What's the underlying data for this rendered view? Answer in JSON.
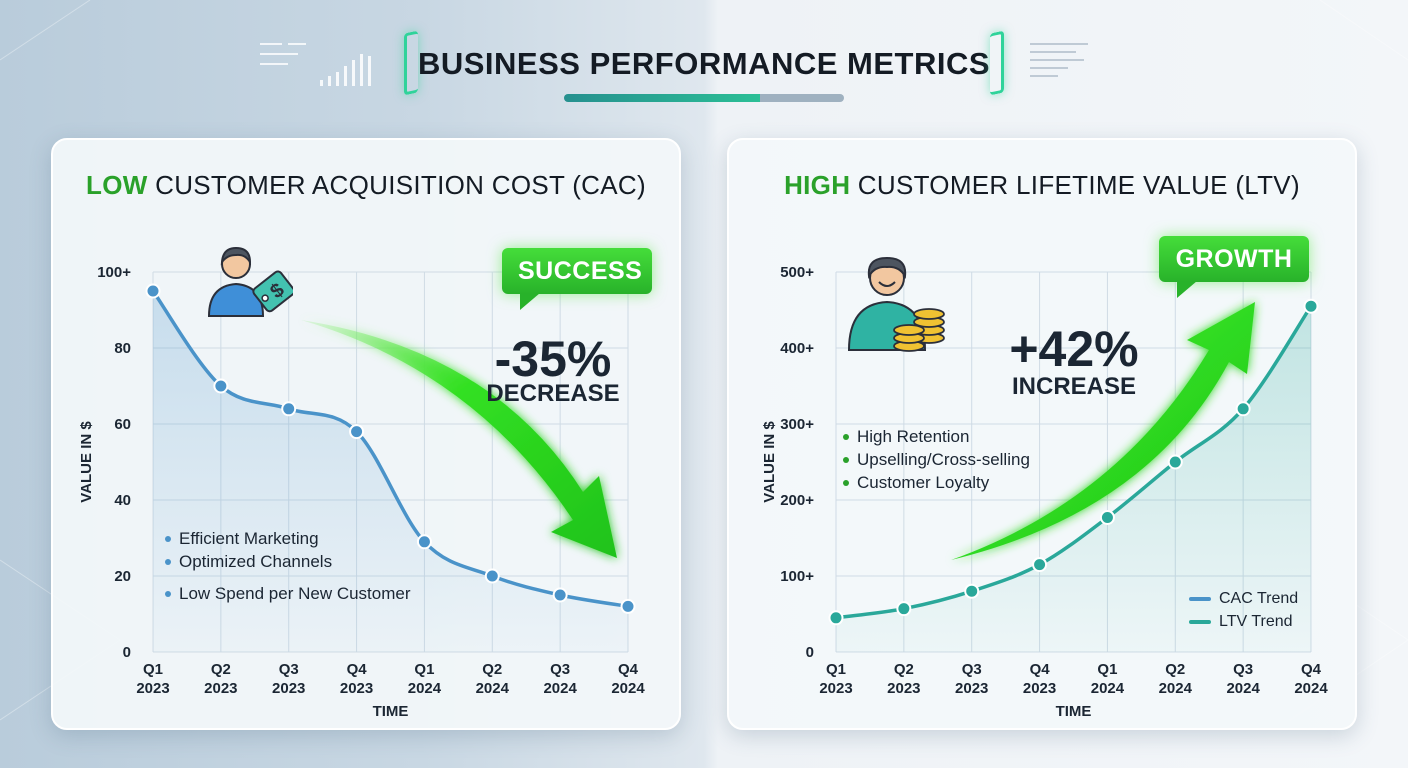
{
  "header": {
    "title": "BUSINESS PERFORMANCE METRICS"
  },
  "colors": {
    "cac_line": "#4a93c9",
    "ltv_line": "#2aa89a",
    "highlight_green": "#2aa12a",
    "arrow_green": "#33e022"
  },
  "icons": {
    "left": "person-with-price-tag-icon",
    "right": "smiling-person-with-coins-icon",
    "arrow_left": "arrow-down-right-icon",
    "arrow_right": "arrow-up-right-icon"
  },
  "cac_panel": {
    "title_highlight": "LOW",
    "title_rest": " CUSTOMER ACQUISITION COST (CAC)",
    "badge": "SUCCESS",
    "change_pct": "-35%",
    "change_word": "DECREASE",
    "bullets": [
      "Efficient Marketing",
      "Optimized Channels",
      "Low Spend per New Customer"
    ]
  },
  "ltv_panel": {
    "title_highlight": "HIGH",
    "title_rest": " CUSTOMER LIFETIME VALUE (LTV)",
    "badge": "GROWTH",
    "change_pct": "+42%",
    "change_word": "INCREASE",
    "bullets": [
      "High Retention",
      "Upselling/Cross-selling",
      "Customer Loyalty"
    ],
    "legend": [
      "CAC Trend",
      "LTV Trend"
    ]
  },
  "chart_data": [
    {
      "type": "line",
      "title": "LOW CUSTOMER ACQUISITION COST (CAC)",
      "xlabel": "TIME",
      "ylabel": "VALUE IN $",
      "categories": [
        [
          "Q1",
          "2023"
        ],
        [
          "Q2",
          "2023"
        ],
        [
          "Q3",
          "2023"
        ],
        [
          "Q4",
          "2023"
        ],
        [
          "Q1",
          "2024"
        ],
        [
          "Q2",
          "2024"
        ],
        [
          "Q3",
          "2024"
        ],
        [
          "Q4",
          "2024"
        ]
      ],
      "ylim": [
        0,
        100
      ],
      "yticks": [
        0,
        20,
        40,
        60,
        80,
        100
      ],
      "ytick_labels": [
        "0",
        "20",
        "40",
        "60",
        "80",
        "100+"
      ],
      "grid": true,
      "series": [
        {
          "values": [
            95,
            70,
            64,
            58,
            29,
            20,
            15,
            12
          ]
        }
      ]
    },
    {
      "type": "line",
      "title": "HIGH CUSTOMER LIFETIME VALUE (LTV)",
      "xlabel": "TIME",
      "ylabel": "VALUE IN $",
      "categories": [
        [
          "Q1",
          "2023"
        ],
        [
          "Q2",
          "2023"
        ],
        [
          "Q3",
          "2023"
        ],
        [
          "Q4",
          "2023"
        ],
        [
          "Q1",
          "2024"
        ],
        [
          "Q2",
          "2024"
        ],
        [
          "Q3",
          "2024"
        ],
        [
          "Q4",
          "2024"
        ]
      ],
      "ylim": [
        0,
        500
      ],
      "yticks": [
        0,
        100,
        200,
        300,
        400,
        500
      ],
      "ytick_labels": [
        "0",
        "100+",
        "200+",
        "300+",
        "400+",
        "500+"
      ],
      "grid": true,
      "legend_position": "bottom-right",
      "series": [
        {
          "values": [
            45,
            57,
            80,
            115,
            177,
            250,
            320,
            455
          ]
        }
      ]
    }
  ]
}
